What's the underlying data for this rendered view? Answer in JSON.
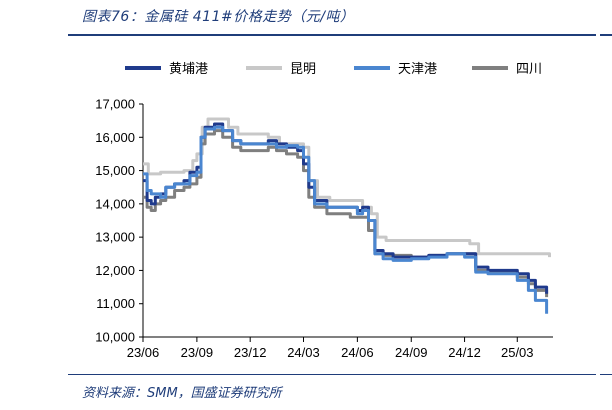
{
  "header": {
    "title": "图表76：金属硅 411#价格走势（元/吨）"
  },
  "footer": {
    "source": "资料来源：SMM，国盛证券研究所"
  },
  "chart_data": {
    "type": "line",
    "ylim": [
      10000,
      17000
    ],
    "y_ticks": [
      "10,000",
      "11,000",
      "12,000",
      "13,000",
      "14,000",
      "15,000",
      "16,000",
      "17,000"
    ],
    "x_ticks": [
      "23/06",
      "23/09",
      "23/12",
      "24/03",
      "24/06",
      "24/09",
      "24/12",
      "25/03"
    ],
    "legend_position": "top",
    "series": [
      {
        "name": "黄埔港",
        "color": "#1f3a8c",
        "points": [
          [
            "2023-06-01",
            14700
          ],
          [
            "2023-06-08",
            14100
          ],
          [
            "2023-06-15",
            14000
          ],
          [
            "2023-06-22",
            14200
          ],
          [
            "2023-07-01",
            14300
          ],
          [
            "2023-07-10",
            14500
          ],
          [
            "2023-07-25",
            14600
          ],
          [
            "2023-08-10",
            14700
          ],
          [
            "2023-08-20",
            14950
          ],
          [
            "2023-09-01",
            15100
          ],
          [
            "2023-09-08",
            16000
          ],
          [
            "2023-09-15",
            16300
          ],
          [
            "2023-10-01",
            16400
          ],
          [
            "2023-10-15",
            16200
          ],
          [
            "2023-11-01",
            15900
          ],
          [
            "2023-11-15",
            15800
          ],
          [
            "2023-12-10",
            15800
          ],
          [
            "2024-01-01",
            15900
          ],
          [
            "2024-01-15",
            15800
          ],
          [
            "2024-02-01",
            15700
          ],
          [
            "2024-02-20",
            15600
          ],
          [
            "2024-03-01",
            15200
          ],
          [
            "2024-03-10",
            14500
          ],
          [
            "2024-03-20",
            14100
          ],
          [
            "2024-04-10",
            13900
          ],
          [
            "2024-05-01",
            13900
          ],
          [
            "2024-05-20",
            13900
          ],
          [
            "2024-06-01",
            13800
          ],
          [
            "2024-06-10",
            13900
          ],
          [
            "2024-06-20",
            13500
          ],
          [
            "2024-07-01",
            12600
          ],
          [
            "2024-07-15",
            12500
          ],
          [
            "2024-08-01",
            12400
          ],
          [
            "2024-09-01",
            12400
          ],
          [
            "2024-10-01",
            12450
          ],
          [
            "2024-11-01",
            12500
          ],
          [
            "2024-12-01",
            12500
          ],
          [
            "2024-12-20",
            12100
          ],
          [
            "2025-01-10",
            12000
          ],
          [
            "2025-02-01",
            12000
          ],
          [
            "2025-03-01",
            11900
          ],
          [
            "2025-03-20",
            11700
          ],
          [
            "2025-04-01",
            11500
          ],
          [
            "2025-04-20",
            11300
          ]
        ]
      },
      {
        "name": "昆明",
        "color": "#c8c8c8",
        "points": [
          [
            "2023-06-01",
            15200
          ],
          [
            "2023-06-10",
            14900
          ],
          [
            "2023-06-20",
            14900
          ],
          [
            "2023-07-01",
            14950
          ],
          [
            "2023-07-20",
            14950
          ],
          [
            "2023-08-10",
            15000
          ],
          [
            "2023-08-25",
            15300
          ],
          [
            "2023-09-01",
            15500
          ],
          [
            "2023-09-10",
            16300
          ],
          [
            "2023-09-20",
            16550
          ],
          [
            "2023-10-10",
            16550
          ],
          [
            "2023-10-25",
            16300
          ],
          [
            "2023-11-10",
            16100
          ],
          [
            "2023-12-10",
            16100
          ],
          [
            "2024-01-01",
            16000
          ],
          [
            "2024-01-20",
            15800
          ],
          [
            "2024-02-10",
            15800
          ],
          [
            "2024-03-01",
            15700
          ],
          [
            "2024-03-10",
            14700
          ],
          [
            "2024-03-25",
            14200
          ],
          [
            "2024-04-15",
            14100
          ],
          [
            "2024-05-20",
            14100
          ],
          [
            "2024-06-10",
            13900
          ],
          [
            "2024-06-25",
            13700
          ],
          [
            "2024-07-05",
            13000
          ],
          [
            "2024-07-20",
            12900
          ],
          [
            "2024-08-15",
            12900
          ],
          [
            "2024-09-15",
            12900
          ],
          [
            "2024-10-15",
            12900
          ],
          [
            "2024-11-25",
            12900
          ],
          [
            "2024-12-10",
            12800
          ],
          [
            "2024-12-25",
            12500
          ],
          [
            "2025-01-20",
            12500
          ],
          [
            "2025-02-20",
            12500
          ],
          [
            "2025-03-20",
            12500
          ],
          [
            "2025-04-15",
            12500
          ],
          [
            "2025-04-25",
            12400
          ]
        ]
      },
      {
        "name": "天津港",
        "color": "#4a86d0",
        "points": [
          [
            "2023-06-01",
            14900
          ],
          [
            "2023-06-08",
            14400
          ],
          [
            "2023-06-15",
            14300
          ],
          [
            "2023-06-22",
            14300
          ],
          [
            "2023-07-01",
            14200
          ],
          [
            "2023-07-10",
            14500
          ],
          [
            "2023-07-25",
            14600
          ],
          [
            "2023-08-10",
            14600
          ],
          [
            "2023-08-20",
            14850
          ],
          [
            "2023-09-01",
            14950
          ],
          [
            "2023-09-08",
            16000
          ],
          [
            "2023-09-15",
            16250
          ],
          [
            "2023-10-01",
            16300
          ],
          [
            "2023-10-15",
            16200
          ],
          [
            "2023-11-01",
            15900
          ],
          [
            "2023-11-15",
            15800
          ],
          [
            "2023-12-10",
            15800
          ],
          [
            "2024-01-01",
            15800
          ],
          [
            "2024-01-15",
            15700
          ],
          [
            "2024-02-01",
            15750
          ],
          [
            "2024-02-20",
            15700
          ],
          [
            "2024-03-01",
            15400
          ],
          [
            "2024-03-10",
            14700
          ],
          [
            "2024-03-20",
            14000
          ],
          [
            "2024-04-10",
            13900
          ],
          [
            "2024-05-01",
            13900
          ],
          [
            "2024-05-20",
            13900
          ],
          [
            "2024-06-01",
            13700
          ],
          [
            "2024-06-10",
            13800
          ],
          [
            "2024-06-20",
            13500
          ],
          [
            "2024-07-01",
            12500
          ],
          [
            "2024-07-15",
            12350
          ],
          [
            "2024-08-01",
            12300
          ],
          [
            "2024-09-01",
            12350
          ],
          [
            "2024-10-01",
            12400
          ],
          [
            "2024-11-01",
            12500
          ],
          [
            "2024-12-01",
            12400
          ],
          [
            "2024-12-20",
            11950
          ],
          [
            "2025-01-10",
            11900
          ],
          [
            "2025-02-01",
            11900
          ],
          [
            "2025-03-01",
            11700
          ],
          [
            "2025-03-20",
            11400
          ],
          [
            "2025-04-01",
            11100
          ],
          [
            "2025-04-20",
            10700
          ]
        ]
      },
      {
        "name": "四川",
        "color": "#7f7f7f",
        "points": [
          [
            "2023-06-01",
            14200
          ],
          [
            "2023-06-08",
            13900
          ],
          [
            "2023-06-15",
            13800
          ],
          [
            "2023-06-22",
            14000
          ],
          [
            "2023-07-01",
            14100
          ],
          [
            "2023-07-10",
            14200
          ],
          [
            "2023-07-25",
            14400
          ],
          [
            "2023-08-10",
            14500
          ],
          [
            "2023-08-20",
            14600
          ],
          [
            "2023-09-01",
            14800
          ],
          [
            "2023-09-08",
            15800
          ],
          [
            "2023-09-15",
            16100
          ],
          [
            "2023-10-01",
            16200
          ],
          [
            "2023-10-15",
            16000
          ],
          [
            "2023-11-01",
            15700
          ],
          [
            "2023-11-15",
            15600
          ],
          [
            "2023-12-10",
            15600
          ],
          [
            "2024-01-01",
            15700
          ],
          [
            "2024-01-15",
            15600
          ],
          [
            "2024-02-01",
            15500
          ],
          [
            "2024-02-20",
            15400
          ],
          [
            "2024-03-01",
            15000
          ],
          [
            "2024-03-10",
            14200
          ],
          [
            "2024-03-20",
            13900
          ],
          [
            "2024-04-10",
            13700
          ],
          [
            "2024-05-01",
            13700
          ],
          [
            "2024-05-20",
            13600
          ],
          [
            "2024-06-01",
            13600
          ],
          [
            "2024-06-10",
            13600
          ],
          [
            "2024-06-20",
            13200
          ],
          [
            "2024-07-01",
            12500
          ],
          [
            "2024-07-15",
            12450
          ],
          [
            "2024-08-01",
            12450
          ],
          [
            "2024-09-01",
            12400
          ],
          [
            "2024-10-01",
            12450
          ],
          [
            "2024-11-01",
            12500
          ],
          [
            "2024-12-01",
            12500
          ],
          [
            "2024-12-20",
            12000
          ],
          [
            "2025-01-10",
            11950
          ],
          [
            "2025-02-01",
            11950
          ],
          [
            "2025-03-01",
            11800
          ],
          [
            "2025-03-20",
            11600
          ],
          [
            "2025-04-01",
            11400
          ],
          [
            "2025-04-20",
            11200
          ]
        ]
      }
    ]
  }
}
